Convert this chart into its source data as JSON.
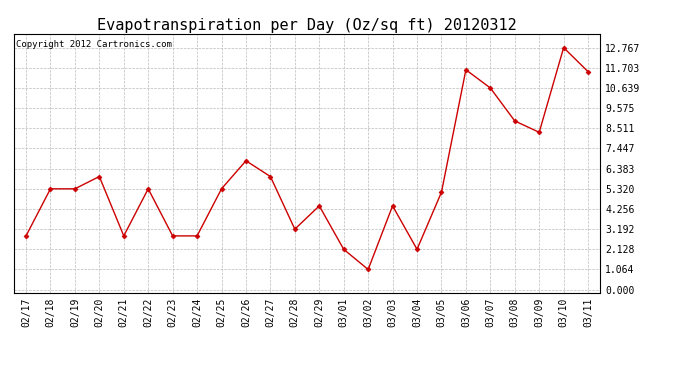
{
  "title": "Evapotranspiration per Day (Oz/sq ft) 20120312",
  "copyright": "Copyright 2012 Cartronics.com",
  "x_labels": [
    "02/17",
    "02/18",
    "02/19",
    "02/20",
    "02/21",
    "02/22",
    "02/23",
    "02/24",
    "02/25",
    "02/26",
    "02/27",
    "02/28",
    "02/29",
    "03/01",
    "03/02",
    "03/03",
    "03/04",
    "03/05",
    "03/06",
    "03/07",
    "03/08",
    "03/09",
    "03/10",
    "03/11"
  ],
  "y_values": [
    2.836,
    5.32,
    5.32,
    5.968,
    2.836,
    5.32,
    2.836,
    2.836,
    5.32,
    6.8,
    5.968,
    3.192,
    4.42,
    2.128,
    1.064,
    4.42,
    2.128,
    5.14,
    11.6,
    10.639,
    8.9,
    8.3,
    12.767,
    11.5
  ],
  "line_color": "#cc0000",
  "marker": "D",
  "marker_size": 2.5,
  "background_color": "#ffffff",
  "plot_bg_color": "#ffffff",
  "grid_color": "#bbbbbb",
  "title_fontsize": 11,
  "tick_fontsize": 7,
  "ytick_values": [
    0.0,
    1.064,
    2.128,
    3.192,
    4.256,
    5.32,
    6.383,
    7.447,
    8.511,
    9.575,
    10.639,
    11.703,
    12.767
  ],
  "ylim": [
    -0.15,
    13.5
  ],
  "copyright_fontsize": 6.5
}
